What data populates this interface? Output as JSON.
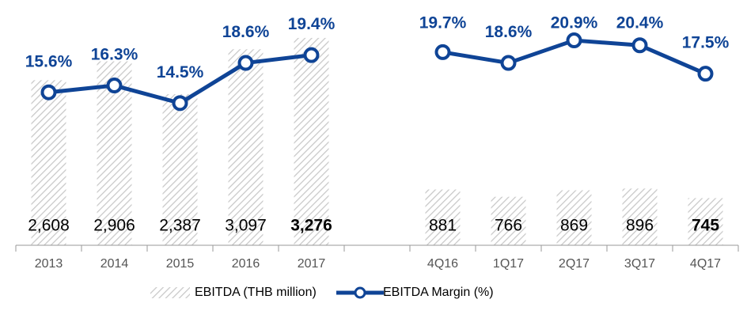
{
  "chart_data": {
    "type": "bar_line",
    "categories": [
      "2013",
      "2014",
      "2015",
      "2016",
      "2017",
      null,
      "4Q16",
      "1Q17",
      "2Q17",
      "3Q17",
      "4Q17"
    ],
    "series": [
      {
        "name": "EBITDA (THB million)",
        "type": "bar",
        "axis": "y",
        "color": "#bdbdbd",
        "values": [
          2608,
          2906,
          2387,
          3097,
          3276,
          null,
          881,
          766,
          869,
          896,
          745
        ],
        "value_labels": [
          "2,608",
          "2,906",
          "2,387",
          "3,097",
          "3,276",
          null,
          "881",
          "766",
          "869",
          "896",
          "745"
        ]
      },
      {
        "name": "EBITDA Margin (%)",
        "type": "line",
        "axis": "y2",
        "color": "#0f4496",
        "values": [
          15.6,
          16.3,
          14.5,
          18.6,
          19.4,
          null,
          19.7,
          18.6,
          20.9,
          20.4,
          17.5
        ],
        "value_labels": [
          "15.6%",
          "16.3%",
          "14.5%",
          "18.6%",
          "19.4%",
          null,
          "19.7%",
          "18.6%",
          "20.9%",
          "20.4%",
          "17.5%"
        ]
      }
    ],
    "ylim": [
      0,
      3500
    ],
    "y2lim": [
      0,
      22.6
    ],
    "legend": "bottom"
  }
}
